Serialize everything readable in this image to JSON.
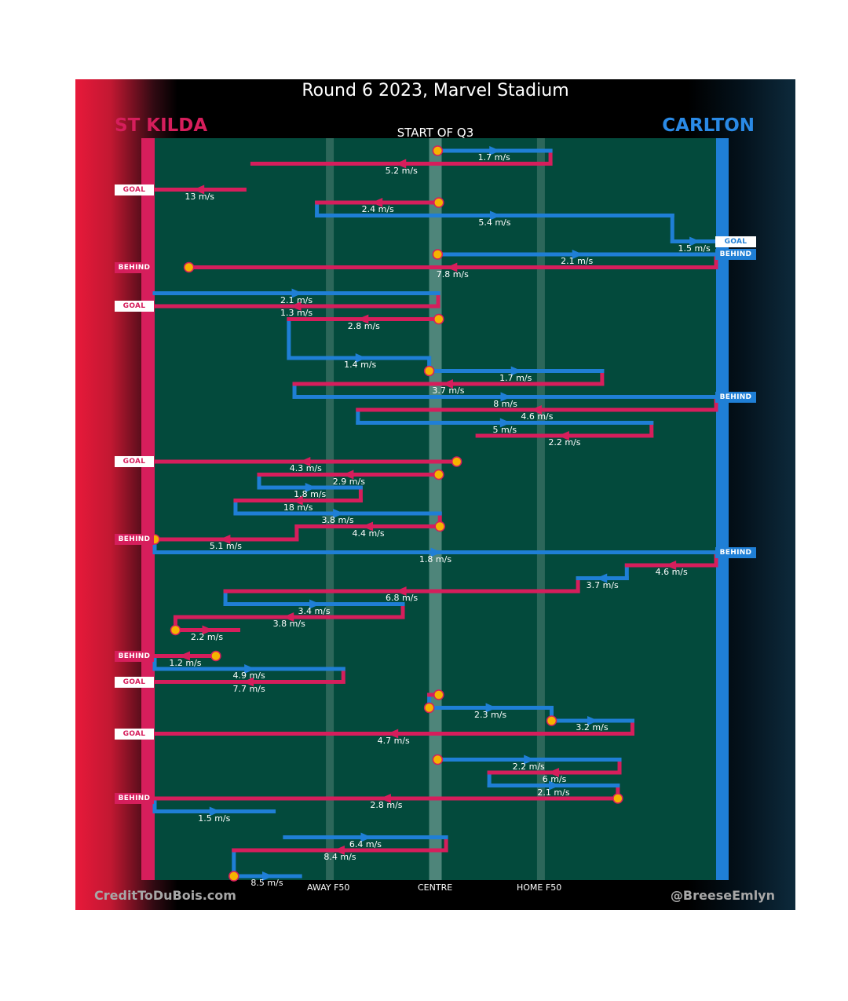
{
  "title": "Round 6 2023, Marvel Stadium",
  "period_label": "START OF Q3",
  "teams": {
    "home": {
      "name": "ST KILDA",
      "color": "#d61e5c"
    },
    "away": {
      "name": "CARLTON",
      "color": "#1f7fd6"
    }
  },
  "colors": {
    "field": "#034a3c",
    "centre_band": "#5c8f85",
    "f50_line": "#3e7366",
    "marker_fill": "#f5b400",
    "marker_stroke": "#d61e5c"
  },
  "footer": {
    "left": "CreditToDuBois.com",
    "right": "@BreeseEmlyn",
    "axis_labels": {
      "away_f50": "AWAY F50",
      "centre": "CENTRE",
      "home_f50": "HOME F50"
    }
  },
  "chart_data": {
    "type": "line",
    "description_note": "Possession chains plotted against field position (0 = St Kilda goal, 100 = Carlton goal); rows run top to bottom in time order.",
    "x_range": [
      0,
      100
    ],
    "x_ticks": {
      "away_f50": 31.2,
      "centre": 50,
      "home_f50": 68.8
    },
    "series": [
      {
        "team": "CARLTON",
        "speed": "1.7 m/s",
        "start_x": 50.4,
        "end_x": 70.5,
        "row": 1,
        "start_marker": true
      },
      {
        "team": "ST KILDA",
        "speed": "5.2 m/s",
        "start_x": 70.5,
        "end_x": 17.4,
        "row": 2
      },
      {
        "team": "ST KILDA",
        "speed": "13 m/s",
        "start_x": 16.0,
        "end_x": 0,
        "row": 4,
        "end_tag": "GOAL"
      },
      {
        "team": "ST KILDA",
        "speed": "2.4 m/s",
        "start_x": 50.6,
        "end_x": 28.9,
        "row": 5,
        "start_marker": true
      },
      {
        "team": "CARLTON",
        "speed": "5.4 m/s",
        "start_x": 28.9,
        "end_x": 92.2,
        "row": 6
      },
      {
        "team": "CARLTON",
        "speed": "1.5 m/s",
        "start_x": 92.2,
        "end_x": 100,
        "row": 8,
        "end_tag": "GOAL"
      },
      {
        "team": "CARLTON",
        "speed": "2.1 m/s",
        "start_x": 50.4,
        "end_x": 100,
        "row": 9,
        "start_marker": true,
        "end_tag": "BEHIND"
      },
      {
        "team": "ST KILDA",
        "speed": "7.8 m/s",
        "start_x": 100,
        "end_x": 6.1,
        "row": 10,
        "end_tag": "BEHIND",
        "end_marker": true
      },
      {
        "team": "CARLTON",
        "speed": "2.1 m/s",
        "start_x": 0,
        "end_x": 50.5,
        "row": 12
      },
      {
        "team": "ST KILDA",
        "speed": "1.3 m/s",
        "start_x": 50.5,
        "end_x": 0,
        "row": 13,
        "end_tag": "GOAL"
      },
      {
        "team": "ST KILDA",
        "speed": "2.8 m/s",
        "start_x": 50.6,
        "end_x": 23.9,
        "row": 14,
        "start_marker": true
      },
      {
        "team": "CARLTON",
        "speed": "1.4 m/s",
        "start_x": 24.3,
        "end_x": 48.9,
        "row": 17
      },
      {
        "team": "CARLTON",
        "speed": "1.7 m/s",
        "start_x": 48.9,
        "end_x": 79.7,
        "row": 18,
        "start_marker": true
      },
      {
        "team": "ST KILDA",
        "speed": "3.7 m/s",
        "start_x": 79.7,
        "end_x": 24.9,
        "row": 19
      },
      {
        "team": "CARLTON",
        "speed": "8 m/s",
        "start_x": 24.9,
        "end_x": 100,
        "row": 20,
        "end_tag": "BEHIND"
      },
      {
        "team": "ST KILDA",
        "speed": "4.6 m/s",
        "start_x": 100,
        "end_x": 36.2,
        "row": 21
      },
      {
        "team": "CARLTON",
        "speed": "5 m/s",
        "start_x": 36.2,
        "end_x": 88.5,
        "row": 22
      },
      {
        "team": "ST KILDA",
        "speed": "2.2 m/s",
        "start_x": 88.5,
        "end_x": 57.5,
        "row": 23
      },
      {
        "team": "ST KILDA",
        "speed": "4.3 m/s",
        "start_x": 53.8,
        "end_x": 0,
        "row": 25,
        "start_marker": true,
        "end_tag": "GOAL"
      },
      {
        "team": "ST KILDA",
        "speed": "2.9 m/s",
        "start_x": 50.6,
        "end_x": 18.6,
        "row": 26,
        "start_marker": true
      },
      {
        "team": "CARLTON",
        "speed": "1.8 m/s",
        "start_x": 18.6,
        "end_x": 36.7,
        "row": 27
      },
      {
        "team": "ST KILDA",
        "speed": "18 m/s",
        "start_x": 36.7,
        "end_x": 14.4,
        "row": 28
      },
      {
        "team": "CARLTON",
        "speed": "3.8 m/s",
        "start_x": 14.4,
        "end_x": 50.8,
        "row": 29
      },
      {
        "team": "ST KILDA",
        "speed": "4.4 m/s",
        "start_x": 50.8,
        "end_x": 25.3,
        "row": 30,
        "start_marker": true
      },
      {
        "team": "ST KILDA",
        "speed": "5.1 m/s",
        "start_x": 25.3,
        "end_x": 0,
        "row": 31,
        "end_marker": true,
        "end_tag": "BEHIND"
      },
      {
        "team": "CARLTON",
        "speed": "1.8 m/s",
        "start_x": 0,
        "end_x": 100,
        "row": 32,
        "end_tag": "BEHIND"
      },
      {
        "team": "ST KILDA",
        "speed": "4.6 m/s",
        "start_x": 100,
        "end_x": 84.1,
        "row": 33
      },
      {
        "team": "CARLTON",
        "speed": "3.7 m/s",
        "start_x": 84.1,
        "end_x": 75.4,
        "row": 34
      },
      {
        "team": "ST KILDA",
        "speed": "6.8 m/s",
        "start_x": 75.4,
        "end_x": 12.6,
        "row": 35
      },
      {
        "team": "CARLTON",
        "speed": "3.4 m/s",
        "start_x": 12.6,
        "end_x": 44.2,
        "row": 36
      },
      {
        "team": "ST KILDA",
        "speed": "3.8 m/s",
        "start_x": 44.2,
        "end_x": 3.7,
        "row": 37
      },
      {
        "team": "ST KILDA",
        "speed": "2.2 m/s",
        "start_x": 3.7,
        "end_x": 14.9,
        "row": 38,
        "start_marker": true
      },
      {
        "team": "ST KILDA",
        "speed": "1.2 m/s",
        "start_x": 10.9,
        "end_x": 0,
        "row": 40,
        "start_marker": true,
        "end_tag": "BEHIND"
      },
      {
        "team": "CARLTON",
        "speed": "4.9 m/s",
        "start_x": 0,
        "end_x": 33.6,
        "row": 41
      },
      {
        "team": "ST KILDA",
        "speed": "7.7 m/s",
        "start_x": 33.6,
        "end_x": 0,
        "row": 42,
        "end_tag": "GOAL"
      },
      {
        "team": "ST KILDA",
        "speed": "",
        "start_x": 50.6,
        "end_x": 48.9,
        "row": 43,
        "start_marker": true
      },
      {
        "team": "CARLTON",
        "speed": "2.3 m/s",
        "start_x": 48.9,
        "end_x": 70.7,
        "row": 44,
        "start_marker": true
      },
      {
        "team": "CARLTON",
        "speed": "3.2 m/s",
        "start_x": 70.7,
        "end_x": 85.1,
        "row": 45,
        "start_marker": true
      },
      {
        "team": "ST KILDA",
        "speed": "4.7 m/s",
        "start_x": 85.1,
        "end_x": 0,
        "row": 46,
        "end_tag": "GOAL"
      },
      {
        "team": "CARLTON",
        "speed": "2.2 m/s",
        "start_x": 50.4,
        "end_x": 82.8,
        "row": 48,
        "start_marker": true
      },
      {
        "team": "ST KILDA",
        "speed": "6 m/s",
        "start_x": 82.8,
        "end_x": 59.6,
        "row": 49
      },
      {
        "team": "CARLTON",
        "speed": "2.1 m/s",
        "start_x": 59.6,
        "end_x": 82.5,
        "row": 50
      },
      {
        "team": "ST KILDA",
        "speed": "2.8 m/s",
        "start_x": 82.5,
        "end_x": 0,
        "row": 51,
        "start_marker": true,
        "end_tag": "BEHIND"
      },
      {
        "team": "CARLTON",
        "speed": "1.5 m/s",
        "start_x": 0,
        "end_x": 21.2,
        "row": 52
      },
      {
        "team": "CARLTON",
        "speed": "6.4 m/s",
        "start_x": 23.2,
        "end_x": 51.9,
        "row": 54
      },
      {
        "team": "ST KILDA",
        "speed": "8.4 m/s",
        "start_x": 51.9,
        "end_x": 14.1,
        "row": 55
      },
      {
        "team": "CARLTON",
        "speed": "8.5 m/s",
        "start_x": 14.1,
        "end_x": 25.9,
        "row": 57,
        "start_marker": true
      }
    ]
  }
}
